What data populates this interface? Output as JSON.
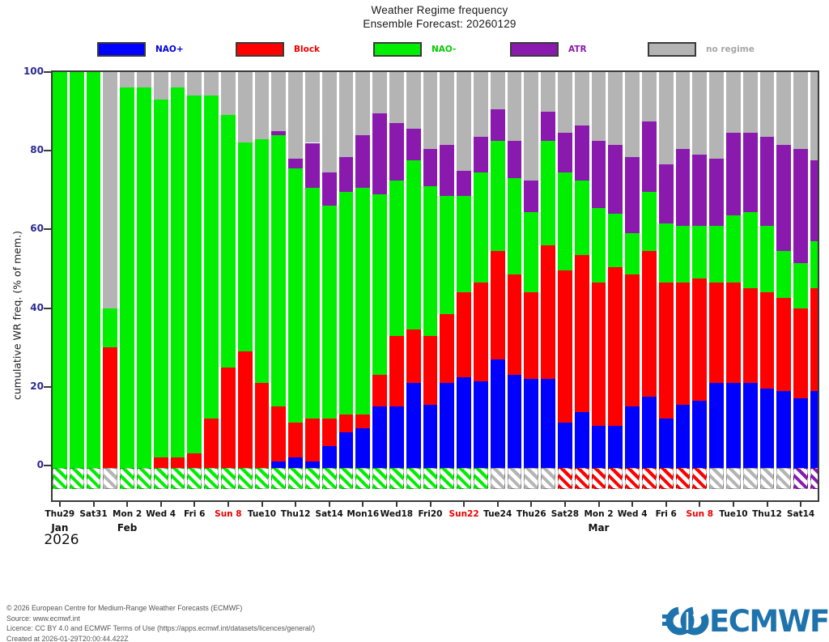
{
  "page": {
    "title_line1": "Weather Regime frequency",
    "title_line2": "Ensemble Forecast: 20260129"
  },
  "legend": [
    {
      "id": "nao-plus",
      "label": "NAO+",
      "color": "#0000ff",
      "label_color": "#0000dd"
    },
    {
      "id": "block",
      "label": "Block",
      "color": "#ff0000",
      "label_color": "#ee0000"
    },
    {
      "id": "nao-minus",
      "label": "NAO-",
      "color": "#00ef00",
      "label_color": "#00cc00"
    },
    {
      "id": "atr",
      "label": "ATR",
      "color": "#8a1aae",
      "label_color": "#8a1aae"
    },
    {
      "id": "no-regime",
      "label": "no regime",
      "color": "#b4b4b4",
      "label_color": "#a6a6a6"
    }
  ],
  "axes": {
    "y_title": "cumulative WR freq. (% of mem.)",
    "y_ticks": [
      100,
      80,
      60,
      40,
      20,
      0
    ],
    "x_months": [
      {
        "text": "Jan",
        "bar": 1
      },
      {
        "text": "Feb",
        "bar": 5
      },
      {
        "text": "Mar",
        "bar": 33
      }
    ],
    "year": "2026"
  },
  "chart_data": {
    "type": "bar",
    "stacked": true,
    "title": "Weather Regime frequency — Ensemble Forecast: 20260129",
    "ylabel": "cumulative WR freq. (% of mem.)",
    "ylim": [
      0,
      100
    ],
    "grid": false,
    "legend_position": "top",
    "stack_order": [
      "NAO+",
      "Block",
      "NAO-",
      "ATR",
      "no regime"
    ],
    "series_colors": {
      "NAO+": "#0000ff",
      "Block": "#ff0000",
      "NAO-": "#00ef00",
      "ATR": "#8a1aae",
      "no regime": "#b4b4b4"
    },
    "regime_key_colors": {
      "green": "#00ef00",
      "gray": "#b4b4b4",
      "red": "#ff0000",
      "purple": "#8a1aae",
      "blue": "#0000ff"
    },
    "bars": [
      {
        "label": "Thu29",
        "sunday": false,
        "values": [
          0,
          0,
          100,
          0,
          0
        ],
        "box": "green",
        "strip": "green"
      },
      {
        "label": "",
        "sunday": false,
        "values": [
          0,
          0,
          100,
          0,
          0
        ],
        "box": "green",
        "strip": "green"
      },
      {
        "label": "Sat31",
        "sunday": false,
        "values": [
          0,
          0,
          100,
          0,
          0
        ],
        "box": "green",
        "strip": "green"
      },
      {
        "label": "",
        "sunday": false,
        "values": [
          0,
          30,
          10,
          0,
          60
        ],
        "box": "gray",
        "strip": "red"
      },
      {
        "label": "Mon 2",
        "sunday": false,
        "values": [
          0,
          0,
          96,
          0,
          4
        ],
        "box": "green",
        "strip": "green"
      },
      {
        "label": "",
        "sunday": false,
        "values": [
          0,
          0,
          96,
          0,
          4
        ],
        "box": "green",
        "strip": "green"
      },
      {
        "label": "Wed 4",
        "sunday": false,
        "values": [
          0,
          2,
          91,
          0,
          7
        ],
        "box": "green",
        "strip": "red"
      },
      {
        "label": "",
        "sunday": false,
        "values": [
          0,
          2,
          94,
          0,
          4
        ],
        "box": "green",
        "strip": "red"
      },
      {
        "label": "Fri 6",
        "sunday": false,
        "values": [
          0,
          3,
          91,
          0,
          6
        ],
        "box": "green",
        "strip": "red"
      },
      {
        "label": "",
        "sunday": false,
        "values": [
          0,
          12,
          82,
          0,
          6
        ],
        "box": "green",
        "strip": "red"
      },
      {
        "label": "Sun 8",
        "sunday": true,
        "values": [
          0,
          25,
          64,
          0,
          11
        ],
        "box": "green",
        "strip": "red"
      },
      {
        "label": "",
        "sunday": false,
        "values": [
          0,
          29,
          53,
          0,
          18
        ],
        "box": "green",
        "strip": "red"
      },
      {
        "label": "Tue10",
        "sunday": false,
        "values": [
          0,
          21,
          62,
          0,
          17
        ],
        "box": "green",
        "strip": "red"
      },
      {
        "label": "",
        "sunday": false,
        "values": [
          1,
          14,
          69,
          1,
          15
        ],
        "box": "green",
        "strip": "blue"
      },
      {
        "label": "Thu12",
        "sunday": false,
        "values": [
          2,
          9,
          64.5,
          2.5,
          22
        ],
        "box": "green",
        "strip": "blue"
      },
      {
        "label": "",
        "sunday": false,
        "values": [
          1,
          11,
          58.5,
          11.5,
          18
        ],
        "box": "green",
        "strip": "blue"
      },
      {
        "label": "Sat14",
        "sunday": false,
        "values": [
          5,
          7,
          54,
          8.5,
          25.5
        ],
        "box": "green",
        "strip": "blue"
      },
      {
        "label": "",
        "sunday": false,
        "values": [
          8.5,
          4.5,
          56.5,
          9,
          21.5
        ],
        "box": "green",
        "strip": "blue"
      },
      {
        "label": "Mon16",
        "sunday": false,
        "values": [
          9.5,
          3.5,
          57.5,
          13.5,
          16
        ],
        "box": "green",
        "strip": "blue"
      },
      {
        "label": "",
        "sunday": false,
        "values": [
          15,
          8,
          46,
          20.5,
          10.5
        ],
        "box": "green",
        "strip": "blue"
      },
      {
        "label": "Wed18",
        "sunday": false,
        "values": [
          15,
          18,
          39.5,
          14.5,
          13
        ],
        "box": "green",
        "strip": "blue"
      },
      {
        "label": "",
        "sunday": false,
        "values": [
          21,
          13.5,
          43,
          8,
          14.5
        ],
        "box": "green",
        "strip": "blue"
      },
      {
        "label": "Fri20",
        "sunday": false,
        "values": [
          15.5,
          17.5,
          38,
          9.5,
          19.5
        ],
        "box": "green",
        "strip": "blue"
      },
      {
        "label": "",
        "sunday": false,
        "values": [
          21,
          17.5,
          30,
          13,
          18.5
        ],
        "box": "green",
        "strip": "blue"
      },
      {
        "label": "Sun22",
        "sunday": true,
        "values": [
          22.5,
          21.5,
          24.5,
          6.5,
          25
        ],
        "box": "green",
        "strip": "blue"
      },
      {
        "label": "",
        "sunday": false,
        "values": [
          21.5,
          25,
          28,
          9,
          16.5
        ],
        "box": "green",
        "strip": "blue"
      },
      {
        "label": "Tue24",
        "sunday": false,
        "values": [
          27,
          27.5,
          28,
          8,
          9.5
        ],
        "box": "gray",
        "strip": "blue"
      },
      {
        "label": "",
        "sunday": false,
        "values": [
          23,
          25.5,
          24.5,
          9.5,
          17.5
        ],
        "box": "gray",
        "strip": "blue"
      },
      {
        "label": "Thu26",
        "sunday": false,
        "values": [
          22,
          22,
          20.5,
          8,
          27.5
        ],
        "box": "gray",
        "strip": "blue"
      },
      {
        "label": "",
        "sunday": false,
        "values": [
          22,
          34,
          26.5,
          7.5,
          10
        ],
        "box": "gray",
        "strip": "blue"
      },
      {
        "label": "Sat28",
        "sunday": false,
        "values": [
          11,
          38.5,
          25,
          10,
          15.5
        ],
        "box": "red",
        "strip": "blue"
      },
      {
        "label": "",
        "sunday": false,
        "values": [
          13.5,
          40,
          19,
          14,
          13.5
        ],
        "box": "red",
        "strip": "blue"
      },
      {
        "label": "Mon 2",
        "sunday": false,
        "values": [
          10,
          36.5,
          19,
          17,
          17.5
        ],
        "box": "red",
        "strip": "blue"
      },
      {
        "label": "",
        "sunday": false,
        "values": [
          10,
          40.5,
          13.5,
          17.5,
          18.5
        ],
        "box": "red",
        "strip": "blue"
      },
      {
        "label": "Wed 4",
        "sunday": false,
        "values": [
          15,
          33.5,
          10.5,
          19.5,
          21.5
        ],
        "box": "red",
        "strip": "blue"
      },
      {
        "label": "",
        "sunday": false,
        "values": [
          17.5,
          37,
          15,
          18,
          12.5
        ],
        "box": "red",
        "strip": "blue"
      },
      {
        "label": "Fri 6",
        "sunday": false,
        "values": [
          12,
          34.5,
          15,
          15,
          23.5
        ],
        "box": "red",
        "strip": "blue"
      },
      {
        "label": "",
        "sunday": false,
        "values": [
          15.5,
          31,
          14.5,
          19.5,
          19.5
        ],
        "box": "red",
        "strip": "blue"
      },
      {
        "label": "Sun 8",
        "sunday": true,
        "values": [
          16.5,
          31,
          13.5,
          18,
          21
        ],
        "box": "red",
        "strip": "blue"
      },
      {
        "label": "",
        "sunday": false,
        "values": [
          21,
          25.5,
          14.5,
          17,
          22
        ],
        "box": "gray",
        "strip": "blue"
      },
      {
        "label": "Tue10",
        "sunday": false,
        "values": [
          21,
          25.5,
          17,
          21,
          15.5
        ],
        "box": "gray",
        "strip": "blue"
      },
      {
        "label": "",
        "sunday": false,
        "values": [
          21,
          24,
          19.5,
          20,
          15.5
        ],
        "box": "gray",
        "strip": "blue"
      },
      {
        "label": "Thu12",
        "sunday": false,
        "values": [
          19.5,
          24.5,
          17,
          22.5,
          16.5
        ],
        "box": "gray",
        "strip": "blue"
      },
      {
        "label": "",
        "sunday": false,
        "values": [
          19,
          23.5,
          12,
          27,
          18.5
        ],
        "box": "gray",
        "strip": "blue"
      },
      {
        "label": "Sat14",
        "sunday": false,
        "values": [
          17,
          23,
          11.5,
          29,
          19.5
        ],
        "box": "purple",
        "strip": "blue"
      },
      {
        "label": "",
        "sunday": false,
        "values": [
          19,
          26,
          12,
          20.5,
          22.5
        ],
        "box": "purple",
        "strip": "blue"
      }
    ]
  },
  "footer": {
    "lines": [
      "© 2026 European Centre for Medium-Range Weather Forecasts (ECMWF)",
      "Source: www.ecmwf.int",
      "Licence: CC BY 4.0 and ECMWF Terms of Use (https://apps.ecmwf.int/datasets/licences/general/)",
      "Created at 2026-01-29T20:00:44.422Z"
    ]
  },
  "logo": {
    "text": "ECMWF",
    "color": "#1f73ad"
  }
}
